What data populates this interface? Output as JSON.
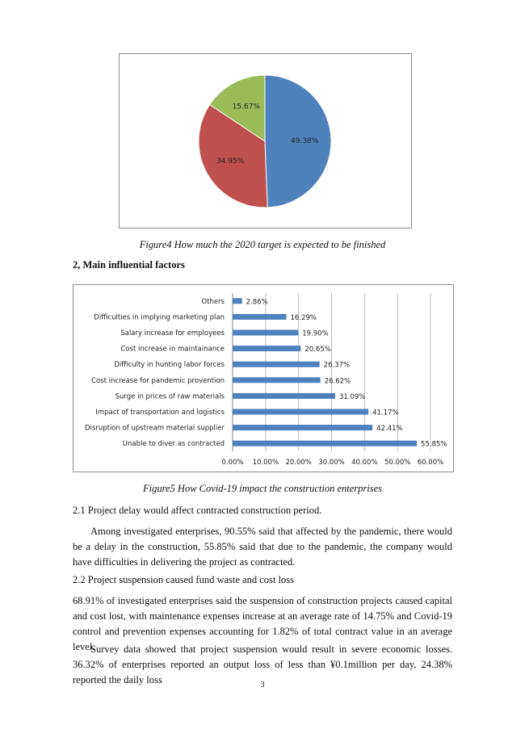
{
  "figure4": {
    "caption": "Figure4 How much the 2020 target is expected to be finished"
  },
  "section_heading": "2, Main influential factors",
  "figure5": {
    "caption": "Figure5 How Covid-19 impact the construction enterprises"
  },
  "paragraphs": [
    "2.1 Project delay would affect contracted construction period.",
    "Among investigated enterprises, 90.55% said that affected by the pandemic, there would be a delay in the construction, 55.85% said that due to the pandemic, the company would have difficulties in delivering the project as contracted.",
    "2.2 Project suspension caused fund waste and cost loss",
    "68.91% of investigated enterprises said the suspension of construction projects caused capital and cost lost, with maintenance expenses increase at an average rate of 14.75% and Covid-19 control and prevention expenses accounting for 1.82% of total contract value in an average level.",
    "Survey data showed that project suspension would result in severe economic losses. 36.32% of enterprises reported an output loss of less than ¥0.1million per day, 24.38% reported the daily loss"
  ],
  "page_number": "3",
  "chart_data": [
    {
      "type": "pie",
      "values": [
        49.38,
        34.95,
        15.67
      ],
      "labels": [
        "49.38%",
        "34.95%",
        "15.67%"
      ],
      "colors": [
        "#4f81bd",
        "#c0504d",
        "#9bbb59"
      ]
    },
    {
      "type": "bar",
      "orientation": "horizontal",
      "categories": [
        "Others",
        "Difficulties in implying marketing plan",
        "Salary increase for employees",
        "Cost increase in maintainance",
        "Difficulty in hunting labor forces",
        "Cost increase for pandemic provention",
        "Surge in prices of raw materials",
        "Impact of transportation and logistics",
        "Disruption of upstream material supplier",
        "Unable to diver as contracted"
      ],
      "values": [
        2.86,
        16.29,
        19.9,
        20.65,
        26.37,
        26.62,
        31.09,
        41.17,
        42.41,
        55.85
      ],
      "data_labels": [
        "2.86%",
        "16.29%",
        "19.90%",
        "20.65%",
        "26.37%",
        "26.62%",
        "31.09%",
        "41.17%",
        "42.41%",
        "55.85%"
      ],
      "xlim": [
        0,
        60
      ],
      "xticks": [
        "0.00%",
        "10.00%",
        "20.00%",
        "30.00%",
        "40.00%",
        "50.00%",
        "60.00%"
      ],
      "grid": true,
      "color": "#4f81bd"
    }
  ]
}
